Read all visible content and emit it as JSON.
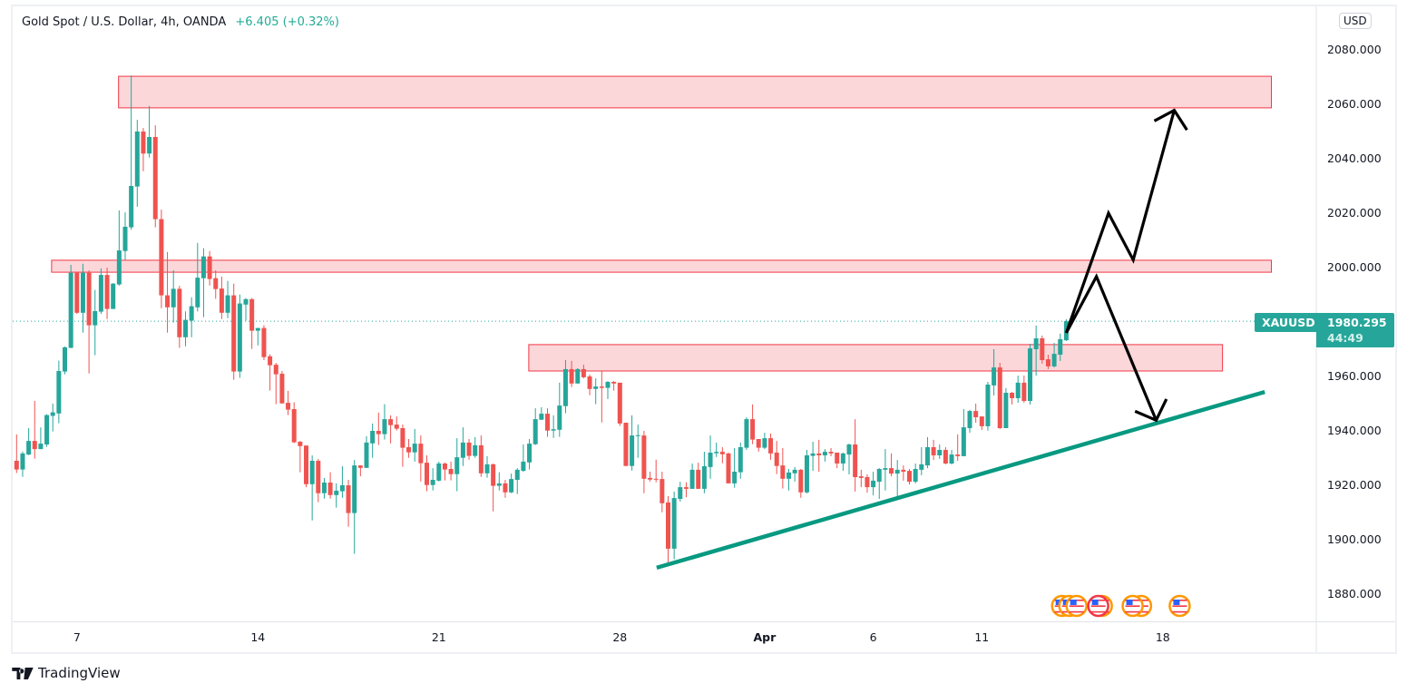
{
  "header": {
    "title": "Gold Spot / U.S. Dollar, 4h, OANDA",
    "change": "+6.405 (+0.32%)"
  },
  "price_axis": {
    "currency": "USD",
    "labels": [
      "2080.000",
      "2060.000",
      "2040.000",
      "2020.000",
      "2000.000",
      "1980.000",
      "1960.000",
      "1940.000",
      "1920.000",
      "1900.000",
      "1880.000"
    ]
  },
  "last_price": {
    "symbol": "XAUUSD",
    "price": "1980.295",
    "countdown": "44:49"
  },
  "branding": "TradingView",
  "chart_data": {
    "type": "candlestick",
    "symbol": "XAUUSD",
    "interval": "4h",
    "ylim": [
      1870,
      2090
    ],
    "y_ticks": [
      2080,
      2060,
      2040,
      2020,
      2000,
      1980,
      1960,
      1940,
      1920,
      1900,
      1880
    ],
    "x_ticks": [
      {
        "label": "7",
        "bar": 10,
        "bold": false
      },
      {
        "label": "14",
        "bar": 40,
        "bold": false
      },
      {
        "label": "21",
        "bar": 70,
        "bold": false
      },
      {
        "label": "28",
        "bar": 100,
        "bold": false
      },
      {
        "label": "Apr",
        "bar": 124,
        "bold": true
      },
      {
        "label": "6",
        "bar": 142,
        "bold": false
      },
      {
        "label": "11",
        "bar": 160,
        "bold": false
      },
      {
        "label": "18",
        "bar": 190,
        "bold": false
      }
    ],
    "colors": {
      "up": "#26a69a",
      "down": "#ef5350",
      "zone_fill": "#fbd7da",
      "zone_border": "#f23645",
      "trendline": "#089981",
      "arrows": "#000000",
      "last_price": "#26a69a"
    },
    "ohlc": [
      [
        1929.0,
        1938.7,
        1924.5,
        1925.8
      ],
      [
        1925.8,
        1932.4,
        1923.1,
        1931.7
      ],
      [
        1931.3,
        1941,
        1931.1,
        1936.3
      ],
      [
        1936.3,
        1951,
        1929.8,
        1933.3
      ],
      [
        1933.3,
        1941.3,
        1933.3,
        1935.3
      ],
      [
        1935,
        1946.1,
        1934.1,
        1945.8
      ],
      [
        1945.5,
        1950,
        1939.8,
        1946.8
      ],
      [
        1946.4,
        1965.8,
        1942.8,
        1962
      ],
      [
        1961.8,
        1971,
        1960.8,
        1970.7
      ],
      [
        1970.5,
        2001,
        1970.4,
        1998.1
      ],
      [
        1998.1,
        1998.5,
        1983,
        1983.4
      ],
      [
        1983.4,
        2001.4,
        1976.1,
        1998.1
      ],
      [
        1998.1,
        1999,
        1961.1,
        1978.8
      ],
      [
        1978.8,
        1991.8,
        1967.8,
        1984
      ],
      [
        1983.8,
        1999.7,
        1983,
        1997.3
      ],
      [
        1997.3,
        2000,
        1981.1,
        1984.8
      ],
      [
        1984.8,
        1994.3,
        1984.8,
        1994.1
      ],
      [
        1993.8,
        2021,
        1993.4,
        2006.3
      ],
      [
        2006.1,
        2020.3,
        2002.8,
        2015
      ],
      [
        2014.8,
        2070.6,
        2013.9,
        2030
      ],
      [
        2029.8,
        2054.3,
        2022.4,
        2050
      ],
      [
        2050,
        2051.3,
        2035.4,
        2041.9
      ],
      [
        2041.9,
        2059.4,
        2040.4,
        2048
      ],
      [
        2048,
        2052.3,
        2014.8,
        2017.8
      ],
      [
        2017.8,
        2021.3,
        1985.1,
        1989.8
      ],
      [
        1989.8,
        2005.7,
        1976.1,
        1985.4
      ],
      [
        1985.4,
        1999,
        1979.8,
        1992.2
      ],
      [
        1992.2,
        1993.3,
        1970.5,
        1974.4
      ],
      [
        1974.4,
        1983.9,
        1971.1,
        1980.8
      ],
      [
        1980.5,
        1989.1,
        1974.4,
        1985.8
      ],
      [
        1985.4,
        2009.1,
        1983.9,
        1996.3
      ],
      [
        1996.1,
        2007.1,
        1981.8,
        2004.1
      ],
      [
        2004.1,
        2006.1,
        1993.4,
        1995.8
      ],
      [
        1996.1,
        1999,
        1988.5,
        1992.1
      ],
      [
        1992.3,
        1996.7,
        1981.1,
        1983.4
      ],
      [
        1983.4,
        1995.1,
        1981.4,
        1989.8
      ],
      [
        1989.8,
        1994.1,
        1958.8,
        1961.8
      ],
      [
        1961.8,
        1990.1,
        1959.5,
        1986.8
      ],
      [
        1986.4,
        1988.8,
        1980.5,
        1988.4
      ],
      [
        1988.4,
        1988.8,
        1970.1,
        1976.8
      ],
      [
        1976.8,
        1977.8,
        1971.4,
        1977.8
      ],
      [
        1977.8,
        1978.8,
        1966,
        1967.1
      ],
      [
        1967.4,
        1968.1,
        1954.8,
        1964.1
      ],
      [
        1964.3,
        1965,
        1949.8,
        1960.8
      ],
      [
        1961,
        1962,
        1950,
        1950.1
      ],
      [
        1950.3,
        1954.7,
        1945.8,
        1947.8
      ],
      [
        1948,
        1950.5,
        1935.5,
        1935.8
      ],
      [
        1936,
        1936.3,
        1924.8,
        1934.4
      ],
      [
        1934.6,
        1934.6,
        1919.3,
        1920.4
      ],
      [
        1920.4,
        1931,
        1907.1,
        1929
      ],
      [
        1929,
        1929.7,
        1913.8,
        1917.1
      ],
      [
        1917.1,
        1922.7,
        1915.1,
        1921
      ],
      [
        1921,
        1924.8,
        1915.1,
        1916.4
      ],
      [
        1916.4,
        1920.7,
        1911.8,
        1918
      ],
      [
        1917.8,
        1927,
        1915.4,
        1920
      ],
      [
        1920,
        1922,
        1904.8,
        1909.8
      ],
      [
        1909.8,
        1929.3,
        1894.8,
        1927.3
      ],
      [
        1927.3,
        1927.3,
        1923.3,
        1926.4
      ],
      [
        1926.4,
        1938,
        1926.4,
        1935.7
      ],
      [
        1935.4,
        1942.7,
        1930.1,
        1940
      ],
      [
        1940,
        1946.7,
        1934.8,
        1938.8
      ],
      [
        1938.8,
        1949.8,
        1936.8,
        1944.3
      ],
      [
        1944.3,
        1945.7,
        1935.4,
        1942.1
      ],
      [
        1942.3,
        1945.3,
        1940.1,
        1940.8
      ],
      [
        1941,
        1942.3,
        1926.8,
        1933.8
      ],
      [
        1934,
        1937,
        1930.1,
        1932.1
      ],
      [
        1932.1,
        1940.7,
        1928.7,
        1935.3
      ],
      [
        1935.3,
        1938.3,
        1921.4,
        1928.1
      ],
      [
        1928.3,
        1931,
        1917.8,
        1920.1
      ],
      [
        1920.1,
        1926.3,
        1918.1,
        1922
      ],
      [
        1921.7,
        1928.7,
        1921.4,
        1928
      ],
      [
        1928,
        1928.3,
        1921.8,
        1925.8
      ],
      [
        1926,
        1928.7,
        1921.8,
        1924.1
      ],
      [
        1924.1,
        1937.3,
        1917.8,
        1930.3
      ],
      [
        1930.1,
        1941.3,
        1927.1,
        1935.7
      ],
      [
        1935.7,
        1937,
        1929.4,
        1930.8
      ],
      [
        1930.8,
        1937.7,
        1930.1,
        1934.7
      ],
      [
        1934.7,
        1938.3,
        1923.1,
        1924.4
      ],
      [
        1924.4,
        1930.7,
        1922.8,
        1927.7
      ],
      [
        1927.7,
        1928,
        1910.4,
        1919.8
      ],
      [
        1919.8,
        1924.8,
        1918.1,
        1920.7
      ],
      [
        1920.7,
        1922,
        1915.4,
        1917.4
      ],
      [
        1917.4,
        1924.3,
        1917.1,
        1922.3
      ],
      [
        1922,
        1926.3,
        1916.8,
        1925.7
      ],
      [
        1925.3,
        1935,
        1925,
        1928.7
      ],
      [
        1928.4,
        1937,
        1925.8,
        1935.3
      ],
      [
        1935.1,
        1948.3,
        1934.8,
        1944.3
      ],
      [
        1944.1,
        1948.7,
        1944,
        1946.3
      ],
      [
        1946.3,
        1948.3,
        1937.8,
        1940.1
      ],
      [
        1940.1,
        1945.7,
        1937.4,
        1940.6
      ],
      [
        1940.4,
        1957.7,
        1937.8,
        1949.3
      ],
      [
        1949.1,
        1966,
        1946.5,
        1962.7
      ],
      [
        1962.7,
        1965.7,
        1956.1,
        1957.4
      ],
      [
        1957.4,
        1963,
        1957.4,
        1962.7
      ],
      [
        1962.7,
        1964.3,
        1959.3,
        1959.7
      ],
      [
        1960,
        1960.7,
        1953.1,
        1955.4
      ],
      [
        1955.4,
        1959.3,
        1949.8,
        1956.3
      ],
      [
        1956.3,
        1962,
        1943.1,
        1955.8
      ],
      [
        1955.8,
        1958.3,
        1951.7,
        1958
      ],
      [
        1958,
        1958.3,
        1954.8,
        1957.4
      ],
      [
        1957.7,
        1957.7,
        1941.8,
        1942.7
      ],
      [
        1943,
        1943,
        1927.1,
        1927.1
      ],
      [
        1927.1,
        1945.7,
        1925.4,
        1938.3
      ],
      [
        1938.3,
        1942.3,
        1930.1,
        1938.4
      ],
      [
        1938.3,
        1940,
        1917.1,
        1922.4
      ],
      [
        1922.7,
        1925,
        1921.4,
        1922.1
      ],
      [
        1922.4,
        1929.4,
        1921.1,
        1922.1
      ],
      [
        1922.3,
        1925,
        1910.1,
        1913.4
      ],
      [
        1913.7,
        1916,
        1891.4,
        1896.7
      ],
      [
        1896.7,
        1917.7,
        1892.8,
        1915.3
      ],
      [
        1915,
        1921.3,
        1914,
        1919.3
      ],
      [
        1919.3,
        1921.1,
        1915.6,
        1918.7
      ],
      [
        1918.7,
        1928,
        1918.7,
        1925.7
      ],
      [
        1925.7,
        1928.3,
        1918.7,
        1918.7
      ],
      [
        1918.7,
        1932.3,
        1917.1,
        1927
      ],
      [
        1926.7,
        1938.3,
        1922.4,
        1932
      ],
      [
        1931.8,
        1935.7,
        1930.4,
        1932.3
      ],
      [
        1932.3,
        1934,
        1928.1,
        1931.4
      ],
      [
        1931.7,
        1932,
        1920.7,
        1920.7
      ],
      [
        1920.7,
        1933.7,
        1919.1,
        1925
      ],
      [
        1924.8,
        1935.7,
        1922.4,
        1934
      ],
      [
        1933.8,
        1945,
        1933,
        1944.3
      ],
      [
        1944.3,
        1949.7,
        1935.1,
        1936.8
      ],
      [
        1937,
        1937,
        1932.4,
        1933.8
      ],
      [
        1933.8,
        1939.3,
        1933.3,
        1937.3
      ],
      [
        1937.3,
        1939,
        1929.4,
        1931.7
      ],
      [
        1932,
        1936.3,
        1924.1,
        1927.1
      ],
      [
        1927.3,
        1933.7,
        1918.8,
        1922.4
      ],
      [
        1922.4,
        1926,
        1918.1,
        1924.7
      ],
      [
        1924.4,
        1926.7,
        1921.4,
        1925.7
      ],
      [
        1925.7,
        1926,
        1915.4,
        1917.4
      ],
      [
        1917.4,
        1933,
        1917,
        1931
      ],
      [
        1930.8,
        1936,
        1925.3,
        1931.7
      ],
      [
        1931.7,
        1936.7,
        1925,
        1931
      ],
      [
        1931,
        1933.3,
        1928.7,
        1932.3
      ],
      [
        1932.3,
        1933.7,
        1930.7,
        1931.7
      ],
      [
        1932,
        1932,
        1926.3,
        1928
      ],
      [
        1928,
        1932,
        1925.3,
        1931.7
      ],
      [
        1931.3,
        1935.3,
        1924,
        1935
      ],
      [
        1935,
        1944.3,
        1917.7,
        1923
      ],
      [
        1923.3,
        1925.7,
        1919.3,
        1922.7
      ],
      [
        1923,
        1924,
        1917.3,
        1919.3
      ],
      [
        1919.3,
        1925,
        1916.3,
        1921.7
      ],
      [
        1921.3,
        1926.3,
        1915,
        1926
      ],
      [
        1925.7,
        1933.3,
        1918.1,
        1926.3
      ],
      [
        1926.3,
        1931.7,
        1923.3,
        1924.3
      ],
      [
        1924.3,
        1929.3,
        1916,
        1925.7
      ],
      [
        1925.7,
        1927.3,
        1921.7,
        1925
      ],
      [
        1925.3,
        1926,
        1920.3,
        1921.3
      ],
      [
        1921.3,
        1928,
        1920.7,
        1926
      ],
      [
        1925.7,
        1934,
        1923.7,
        1927.7
      ],
      [
        1927.3,
        1937.7,
        1926.3,
        1934
      ],
      [
        1934,
        1936.7,
        1929.3,
        1931
      ],
      [
        1931,
        1935,
        1929.7,
        1933
      ],
      [
        1933,
        1934,
        1927.7,
        1928
      ],
      [
        1928,
        1933,
        1927.7,
        1931.3
      ],
      [
        1931.3,
        1938.7,
        1929,
        1930.7
      ],
      [
        1930.7,
        1948,
        1930.7,
        1941.3
      ],
      [
        1941,
        1947.7,
        1939.3,
        1947.3
      ],
      [
        1947.3,
        1950,
        1943,
        1945
      ],
      [
        1945.3,
        1945.3,
        1940.3,
        1941.7
      ],
      [
        1941.7,
        1958,
        1940.1,
        1957
      ],
      [
        1956.7,
        1970,
        1953,
        1963.3
      ],
      [
        1963.3,
        1965,
        1940.7,
        1941
      ],
      [
        1941,
        1955.7,
        1941,
        1954
      ],
      [
        1954,
        1954.3,
        1949.7,
        1952
      ],
      [
        1952,
        1960.3,
        1950.3,
        1957.7
      ],
      [
        1957.7,
        1960.3,
        1950.3,
        1951
      ],
      [
        1951,
        1972,
        1949.7,
        1970.3
      ],
      [
        1970,
        1978.7,
        1960.3,
        1974
      ],
      [
        1974,
        1975,
        1964.7,
        1966
      ],
      [
        1966.3,
        1968,
        1962.7,
        1963.7
      ],
      [
        1963.7,
        1972.3,
        1963.3,
        1968.3
      ],
      [
        1968,
        1975.7,
        1965.7,
        1973.7
      ],
      [
        1973.3,
        1981,
        1973,
        1980.295
      ]
    ],
    "last_price_value": 1980.295,
    "zones": [
      {
        "bar_from": 16.9,
        "bar_to": 208,
        "price_top": 2070.3,
        "price_bottom": 2058.7
      },
      {
        "bar_from": 5.8,
        "bar_to": 208,
        "price_top": 2002.7,
        "price_bottom": 1998.3
      },
      {
        "bar_from": 84.9,
        "bar_to": 199.9,
        "price_top": 1971.7,
        "price_bottom": 1962
      }
    ],
    "trendline": [
      {
        "bar": 106.1,
        "price": 1889.7
      },
      {
        "bar": 206.9,
        "price": 1954.3
      }
    ],
    "arrows": [
      {
        "path": [
          {
            "bar": 174,
            "price": 1976
          },
          {
            "bar": 181,
            "price": 2020
          },
          {
            "bar": 185.1,
            "price": 2002.8
          },
          {
            "bar": 191.9,
            "price": 2057.8
          }
        ],
        "head": [
          {
            "bar": 188.6,
            "price": 2053.9
          },
          {
            "bar": 194,
            "price": 2050.6
          }
        ]
      },
      {
        "path": [
          {
            "bar": 174,
            "price": 1976
          },
          {
            "bar": 179,
            "price": 1996.7
          },
          {
            "bar": 188.9,
            "price": 1943.9
          }
        ],
        "head": [
          {
            "bar": 185.4,
            "price": 1947.2
          },
          {
            "bar": 190.6,
            "price": 1951.7
          }
        ]
      }
    ],
    "events": [
      {
        "bar": 173.3,
        "icon": "us-flag-event-icon",
        "ring": "#ff9800"
      },
      {
        "bar": 174.5,
        "icon": "us-flag-event-icon",
        "ring": "#ff9800"
      },
      {
        "bar": 175.7,
        "icon": "us-flag-event-icon",
        "ring": "#ff9800"
      },
      {
        "bar": 179.9,
        "icon": "us-flag-event-icon",
        "ring": "#ff9800"
      },
      {
        "bar": 179.3,
        "icon": "us-flag-event-icon",
        "ring": "#f23645"
      },
      {
        "bar": 186.4,
        "icon": "us-flag-event-icon",
        "ring": "#ff9800"
      },
      {
        "bar": 185.0,
        "icon": "us-flag-event-icon",
        "ring": "#ff9800"
      },
      {
        "bar": 192.8,
        "icon": "us-flag-event-icon",
        "ring": "#ff9800"
      }
    ]
  }
}
